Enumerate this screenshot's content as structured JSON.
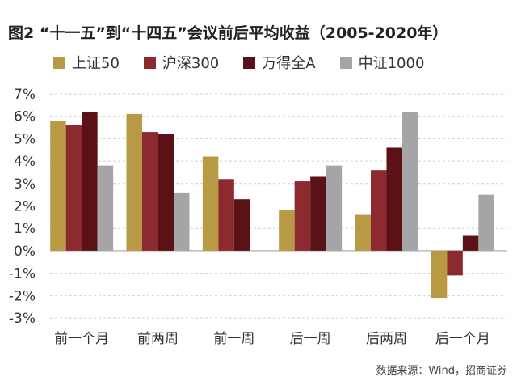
{
  "chart_data": {
    "type": "bar",
    "title": "图2 “十一五”到“十四五”会议前后平均收益（2005-2020年）",
    "categories": [
      "前一个月",
      "前两周",
      "前一周",
      "后一周",
      "后两周",
      "后一个月"
    ],
    "series": [
      {
        "name": "上证50",
        "color": "#b89a45",
        "values": [
          5.8,
          6.1,
          4.2,
          1.8,
          1.6,
          -2.1
        ]
      },
      {
        "name": "沪深300",
        "color": "#8c2a2f",
        "values": [
          5.6,
          5.3,
          3.2,
          3.1,
          3.6,
          -1.1
        ]
      },
      {
        "name": "万得全A",
        "color": "#5a1217",
        "values": [
          6.2,
          5.2,
          2.3,
          3.3,
          4.6,
          0.7
        ]
      },
      {
        "name": "中证1000",
        "color": "#a5a5a7",
        "values": [
          3.8,
          2.6,
          null,
          3.8,
          6.2,
          2.5
        ]
      }
    ],
    "ylim": [
      -3,
      7
    ],
    "yticks": [
      7,
      6,
      5,
      4,
      3,
      2,
      1,
      0,
      -1,
      -2,
      -3
    ],
    "ytick_labels": [
      "7%",
      "6%",
      "5%",
      "4%",
      "3%",
      "2%",
      "1%",
      "0%",
      "-1%",
      "-2%",
      "-3%"
    ],
    "grid": true,
    "legend_position": "top",
    "xlabel": "",
    "ylabel": "",
    "source": "数据来源：Wind，招商证券"
  }
}
